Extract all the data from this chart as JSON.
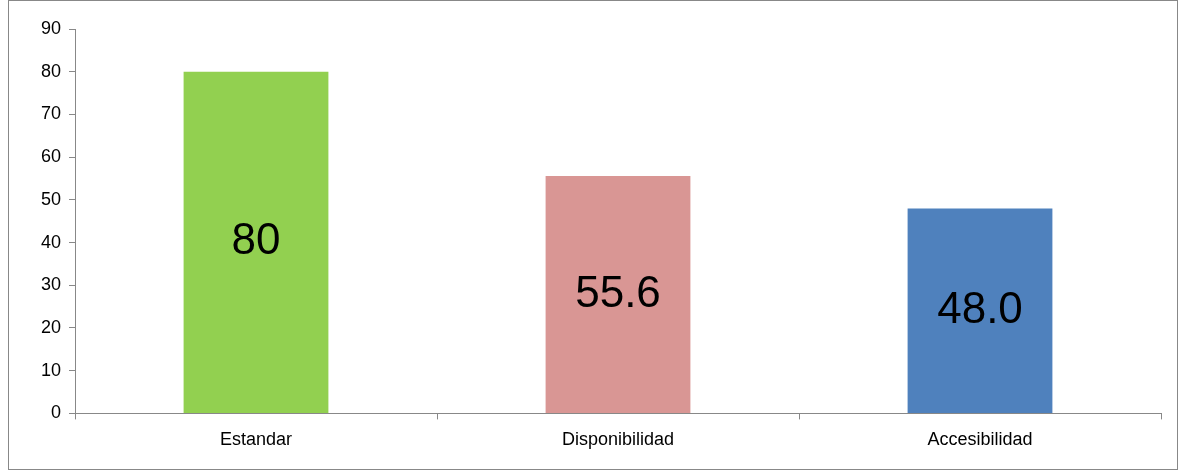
{
  "chart_data": {
    "type": "bar",
    "categories": [
      "Estandar",
      "Disponibilidad",
      "Accesibilidad"
    ],
    "values": [
      80,
      55.6,
      48.0
    ],
    "value_labels": [
      "80",
      "55.6",
      "48.0"
    ],
    "colors": [
      "#92d050",
      "#d99694",
      "#4f81bd"
    ],
    "ylim": [
      0,
      90
    ],
    "yticks": [
      0,
      10,
      20,
      30,
      40,
      50,
      60,
      70,
      80,
      90
    ],
    "grid": false,
    "legend": false
  }
}
